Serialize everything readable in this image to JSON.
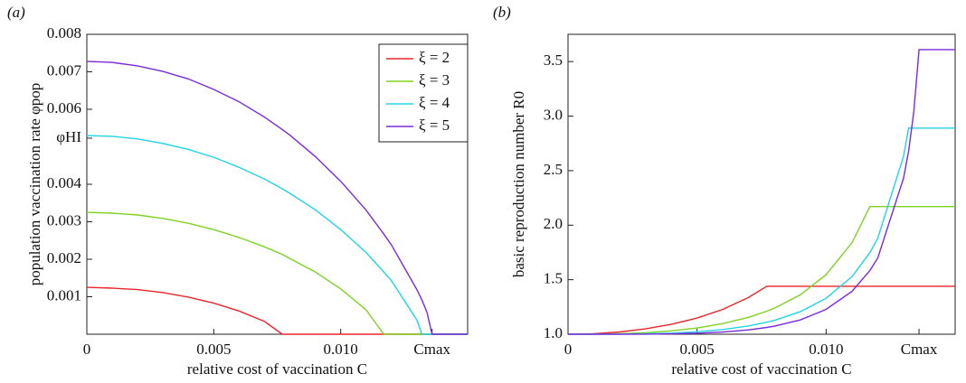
{
  "chart_data": [
    {
      "type": "line",
      "panel_label": "(a)",
      "xlabel": "relative cost of vaccination C",
      "ylabel": "population vaccination rate φpop",
      "x": [
        0,
        0.001,
        0.002,
        0.003,
        0.004,
        0.005,
        0.006,
        0.007,
        0.0077,
        0.008,
        0.009,
        0.01,
        0.011,
        0.0117,
        0.012,
        0.013,
        0.0132,
        0.0134,
        0.0136,
        0.014,
        0.015
      ],
      "xlim": [
        0,
        0.015
      ],
      "ylim": [
        0,
        0.008
      ],
      "xticks": [
        0,
        0.005,
        {
          "value": 0.01,
          "label": "0.010"
        },
        {
          "value": 0.0136,
          "label": "Cmax"
        }
      ],
      "yticks": [
        0.001,
        0.002,
        0.003,
        0.004,
        {
          "value": 0.00523,
          "label": "φHI"
        },
        0.006,
        0.007,
        0.008
      ],
      "legend": "upper right",
      "series": [
        {
          "name": "ξ = 2",
          "color": "#e8262b",
          "values": [
            0.00125,
            0.00123,
            0.00119,
            0.00111,
            0.00099,
            0.00083,
            0.00062,
            0.00034,
            0,
            0,
            0,
            0,
            0,
            0,
            0,
            0,
            0,
            0,
            0,
            0,
            0
          ]
        },
        {
          "name": "ξ = 3",
          "color": "#7ed321",
          "values": [
            0.00325,
            0.00323,
            0.00318,
            0.00309,
            0.00296,
            0.00279,
            0.00258,
            0.00233,
            0.00213,
            0.00202,
            0.00166,
            0.00121,
            0.00065,
            0,
            0,
            0,
            0,
            0,
            0,
            0,
            0
          ]
        },
        {
          "name": "ξ = 4",
          "color": "#22d3e6",
          "values": [
            0.0053,
            0.00528,
            0.00521,
            0.00509,
            0.00493,
            0.00472,
            0.00445,
            0.00414,
            0.00388,
            0.00376,
            0.00332,
            0.00279,
            0.00218,
            0.00166,
            0.00143,
            0.00038,
            0,
            0,
            0,
            0,
            0
          ]
        },
        {
          "name": "ξ = 5",
          "color": "#7a2bd9",
          "values": [
            0.00728,
            0.00725,
            0.00716,
            0.00701,
            0.00681,
            0.00653,
            0.0062,
            0.00579,
            0.00546,
            0.00531,
            0.00474,
            0.00408,
            0.00331,
            0.00267,
            0.00238,
            0.00119,
            0.00091,
            0.00058,
            0,
            0,
            0
          ]
        }
      ]
    },
    {
      "type": "line",
      "panel_label": "(b)",
      "xlabel": "relative cost of vaccination C",
      "ylabel": "basic reproduction number R0",
      "x": [
        0,
        0.001,
        0.002,
        0.003,
        0.004,
        0.005,
        0.006,
        0.007,
        0.0077,
        0.008,
        0.009,
        0.01,
        0.011,
        0.0117,
        0.012,
        0.013,
        0.0132,
        0.0134,
        0.0136,
        0.014,
        0.015
      ],
      "xlim": [
        0,
        0.015
      ],
      "ylim": [
        1,
        3.75
      ],
      "xticks": [
        0,
        0.005,
        {
          "value": 0.01,
          "label": "0.010"
        },
        {
          "value": 0.0136,
          "label": "Cmax"
        }
      ],
      "yticks": [
        {
          "value": 1,
          "label": "1.0"
        },
        1.5,
        {
          "value": 2,
          "label": "2.0"
        },
        2.5,
        {
          "value": 3,
          "label": "3.0"
        },
        3.5
      ],
      "series": [
        {
          "color": "#e8262b",
          "values": [
            1,
            1.005,
            1.021,
            1.049,
            1.09,
            1.148,
            1.228,
            1.338,
            1.44,
            1.44,
            1.44,
            1.44,
            1.44,
            1.44,
            1.44,
            1.44,
            1.44,
            1.44,
            1.44,
            1.44,
            1.44
          ]
        },
        {
          "color": "#7ed321",
          "values": [
            1,
            1.001,
            1.005,
            1.014,
            1.031,
            1.057,
            1.098,
            1.155,
            1.211,
            1.239,
            1.361,
            1.546,
            1.838,
            2.17,
            2.17,
            2.17,
            2.17,
            2.17,
            2.17,
            2.17,
            2.17
          ]
        },
        {
          "color": "#22d3e6",
          "values": [
            1,
            1,
            1.001,
            1.004,
            1.01,
            1.022,
            1.043,
            1.076,
            1.11,
            1.127,
            1.206,
            1.33,
            1.527,
            1.749,
            1.88,
            2.63,
            2.89,
            2.89,
            2.89,
            2.89,
            2.89
          ]
        },
        {
          "color": "#7a2bd9",
          "values": [
            1,
            1,
            1,
            1.001,
            1.003,
            1.009,
            1.02,
            1.04,
            1.062,
            1.074,
            1.131,
            1.228,
            1.393,
            1.585,
            1.698,
            2.43,
            2.68,
            3.04,
            3.61,
            3.61,
            3.61
          ]
        }
      ]
    }
  ]
}
